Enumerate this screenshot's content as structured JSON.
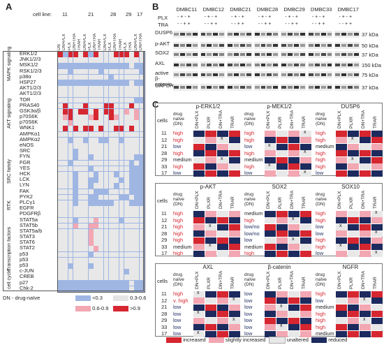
{
  "panels": {
    "a": "A",
    "b": "B",
    "c": "C"
  },
  "panelA": {
    "cell_line_label": "cell line:",
    "cell_lines": [
      "11",
      "21",
      "28",
      "29",
      "17"
    ],
    "treatments": [
      "DN",
      "DN+PLX",
      "PLX",
      "DN+TRA",
      "TRAR",
      "DN+PLX",
      "PLX",
      "DN+TRA",
      "TRAR",
      "DN+PLX",
      "PLX",
      "DN+TRA",
      "TRAR",
      "PLX",
      "TRA",
      "DN+PLX",
      "DN+TRA"
    ],
    "groups": [
      "MAPK signaling",
      "AKT signaling",
      "SRC family",
      "RTK",
      "Transcription factors",
      "cell cycle"
    ],
    "proteins": [
      "ERK1/2",
      "JNK1/2/3",
      "MSK1/2",
      "RSK1/2/3",
      "p38α",
      "HSP27",
      "AKT1/2/3",
      "AKT1/2/3",
      "TOR",
      "PRAS40",
      "GSK3α/β",
      "p70S6K",
      "p70S6K",
      "WNK1",
      "AMPKα1",
      "AMPKα2",
      "eNOS",
      "SRC",
      "FYN",
      "FGR",
      "YES",
      "HCK",
      "LCK",
      "LYN",
      "FAK",
      "PYK2",
      "PLCγ1",
      "EGFR",
      "PDGFRβ",
      "STAT5a",
      "STAT5b",
      "STAT5a/b",
      "STAT3",
      "STAT6",
      "STAT2",
      "p53",
      "p53",
      "p53",
      "c-JUN",
      "CREB",
      "p27",
      "Chk-2"
    ],
    "legend_note": "DN - drug-naïve",
    "legend": [
      "<0.3",
      "0.3-0.6",
      "0.6-0.9",
      ">0.9"
    ],
    "colors": {
      "low": "#9fb6e3",
      "mid": "#e8e8e8",
      "mhigh": "#f2a7b2",
      "high": "#d62630"
    }
  },
  "panelB": {
    "samples": [
      "DMBC11",
      "DMBC12",
      "DMBC21",
      "DMBC28",
      "DMBC29",
      "DMBC33",
      "DMBC17"
    ],
    "plx_label": "PLX",
    "tra_label": "TRA",
    "plx_marks": "- + - +",
    "tra_marks": "- - + +",
    "rows": [
      "DUSP6",
      "p-AKT",
      "SOX2",
      "AXL",
      "active β-catenin",
      "GAPDH"
    ],
    "kda": [
      "37 kDa",
      "50 kDa",
      "37 kDa",
      "150 kDa",
      "75 kDa",
      "37 kDa"
    ]
  },
  "panelC": {
    "cells_label": "cells",
    "drug_naive_label": "drug naïve (DN)",
    "cols": [
      "DN+PLX",
      "PLXR",
      "DN+TRA",
      "TRAR"
    ],
    "row_ids": [
      "11",
      "12",
      "21",
      "28",
      "29",
      "33",
      "17"
    ],
    "block1": {
      "titles": [
        "p-ERK1/2",
        "p-MEK1/2",
        "DUSP6"
      ],
      "levels": [
        [
          "high",
          "high",
          "high"
        ],
        [
          "high",
          "high",
          "high"
        ],
        [
          "low",
          "low",
          "medium"
        ],
        [
          "high",
          "high",
          "high"
        ],
        [
          "medium",
          "medium",
          "high"
        ],
        [
          "high",
          "high",
          "high"
        ],
        [
          "low",
          "low",
          "low"
        ]
      ]
    },
    "block2": {
      "titles": [
        "p-AKT",
        "SOX2",
        "SOX10"
      ],
      "levels": [
        [
          "high",
          "medium",
          "high"
        ],
        [
          "high",
          "high",
          "high"
        ],
        [
          "high",
          "low/no",
          "low"
        ],
        [
          "high",
          "low/no",
          "low"
        ],
        [
          "high",
          "low",
          "high"
        ],
        [
          "medium",
          "medium",
          "high"
        ],
        [
          "high",
          "high",
          "low"
        ]
      ]
    },
    "block3": {
      "titles": [
        "AXL",
        "β-catenin",
        "NGFR"
      ],
      "levels": [
        [
          "high",
          "low",
          "high"
        ],
        [
          "v. high",
          "low",
          "low"
        ],
        [
          "low",
          "low",
          "medium"
        ],
        [
          "low",
          "low",
          "high"
        ],
        [
          "low",
          "low",
          "high"
        ],
        [
          "low",
          "low",
          "high"
        ],
        [
          "low",
          "low",
          "medium"
        ]
      ]
    },
    "legend": [
      "increased",
      "slightly increased",
      "unaltered",
      "reduced"
    ],
    "legend_colors": [
      "#d62630",
      "#f2a7b2",
      "#e8e8e8",
      "#1c2a5e"
    ],
    "x_mark": "x"
  }
}
